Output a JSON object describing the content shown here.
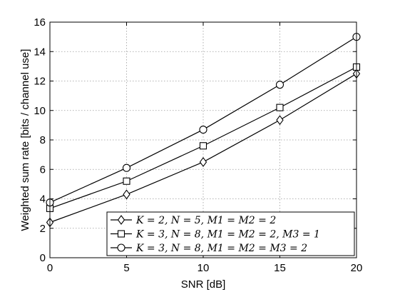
{
  "chart_data": {
    "type": "line",
    "title": "",
    "xlabel": "SNR [dB]",
    "ylabel": "Weighted sum rate [bits / channel use]",
    "xlim": [
      0,
      20
    ],
    "ylim": [
      0,
      16
    ],
    "x_ticks": [
      0,
      5,
      10,
      15,
      20
    ],
    "y_ticks": [
      0,
      2,
      4,
      6,
      8,
      10,
      12,
      14,
      16
    ],
    "grid": true,
    "legend_position": "bottom-right",
    "x": [
      0,
      5,
      10,
      15,
      20
    ],
    "series": [
      {
        "name": "K = 2, N = 5, M1 = M2 = 2",
        "marker": "diamond",
        "values": [
          2.4,
          4.3,
          6.5,
          9.35,
          12.5
        ]
      },
      {
        "name": "K = 3, N = 8, M1 = M2 = 2, M3 = 1",
        "marker": "square",
        "values": [
          3.35,
          5.2,
          7.6,
          10.2,
          12.95
        ]
      },
      {
        "name": "K = 3, N = 8, M1 = M2 = M3 = 2",
        "marker": "circle",
        "values": [
          3.75,
          6.1,
          8.7,
          11.75,
          15.0
        ]
      }
    ]
  }
}
